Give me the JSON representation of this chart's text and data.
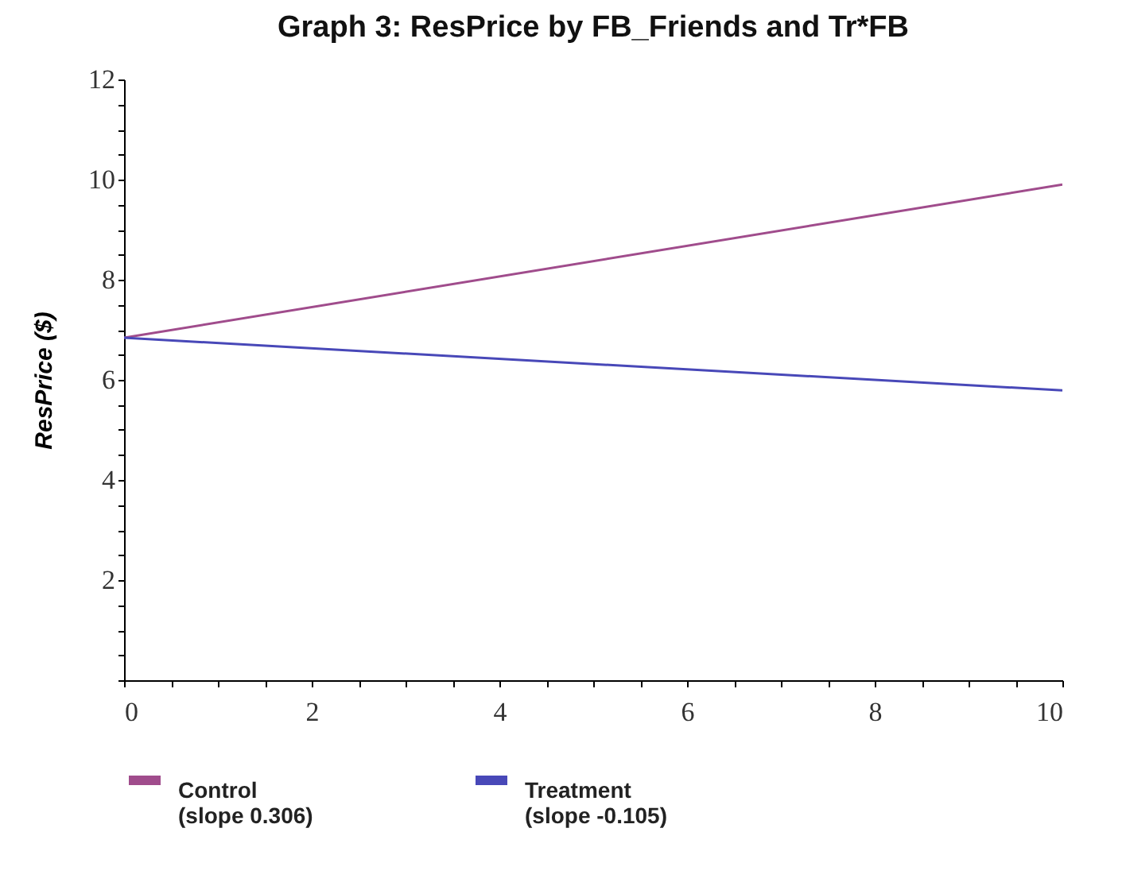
{
  "chart_data": {
    "type": "line",
    "title": "Graph 3: ResPrice by FB_Friends and Tr*FB",
    "ylabel": "ResPrice ($)",
    "x": [
      0,
      10
    ],
    "series": [
      {
        "name": "Control\n(slope 0.306)",
        "color": "#a04c8c",
        "values": [
          6.84,
          9.9
        ]
      },
      {
        "name": "Treatment\n(slope -0.105)",
        "color": "#4848b8",
        "values": [
          6.84,
          5.79
        ]
      }
    ],
    "xlim": [
      0,
      10
    ],
    "xticks": [
      0,
      {
        "value": 0.5,
        "label": null
      },
      {
        "value": 1,
        "label": null
      },
      {
        "value": 1.5,
        "label": null
      },
      2,
      {
        "value": 2.5,
        "label": null
      },
      {
        "value": 3,
        "label": null
      },
      {
        "value": 3.5,
        "label": null
      },
      4,
      {
        "value": 4.5,
        "label": null
      },
      {
        "value": 5,
        "label": null
      },
      {
        "value": 5.5,
        "label": null
      },
      6,
      {
        "value": 6.5,
        "label": null
      },
      {
        "value": 7,
        "label": null
      },
      {
        "value": 7.5,
        "label": null
      },
      8,
      {
        "value": 8.5,
        "label": null
      },
      {
        "value": 9,
        "label": null
      },
      {
        "value": 9.5,
        "label": null
      },
      10
    ],
    "ylim": [
      0,
      12
    ],
    "yticks": [
      {
        "value": 0,
        "label": null
      },
      {
        "value": 0.5,
        "label": null
      },
      {
        "value": 1,
        "label": null
      },
      {
        "value": 1.5,
        "label": null
      },
      2,
      {
        "value": 2.5,
        "label": null
      },
      {
        "value": 3,
        "label": null
      },
      {
        "value": 3.5,
        "label": null
      },
      4,
      {
        "value": 4.5,
        "label": null
      },
      {
        "value": 5,
        "label": null
      },
      {
        "value": 5.5,
        "label": null
      },
      6,
      {
        "value": 6.5,
        "label": null
      },
      {
        "value": 7,
        "label": null
      },
      {
        "value": 7.5,
        "label": null
      },
      8,
      {
        "value": 8.5,
        "label": null
      },
      {
        "value": 9,
        "label": null
      },
      {
        "value": 9.5,
        "label": null
      },
      10,
      {
        "value": 10.5,
        "label": null
      },
      {
        "value": 11,
        "label": null
      },
      {
        "value": 11.5,
        "label": null
      },
      12
    ],
    "grid": false,
    "legend": "bottom",
    "marker": "none",
    "line_style": "solid"
  }
}
